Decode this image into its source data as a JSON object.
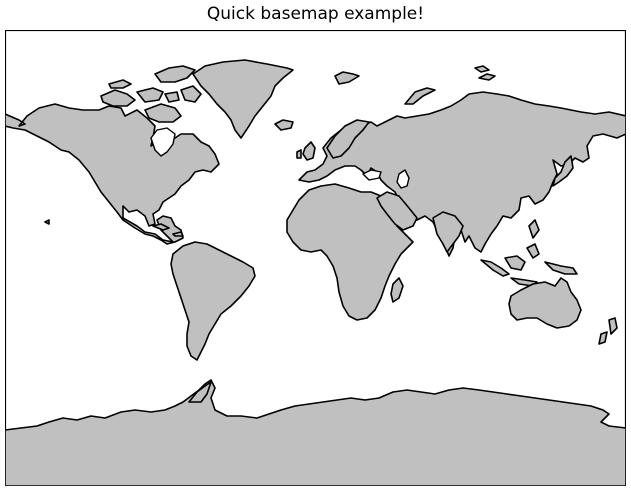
{
  "map": {
    "title": "Quick basemap example!",
    "projection": "mercator",
    "land_color": "#c0c0c0",
    "ocean_color": "#ffffff",
    "coastline_color": "#000000",
    "regions": [
      "north-america",
      "greenland",
      "south-america",
      "europe",
      "africa",
      "asia",
      "australia",
      "antarctica",
      "arctic-islands",
      "new-zealand",
      "japan",
      "indonesia",
      "madagascar",
      "uk",
      "iceland"
    ]
  }
}
